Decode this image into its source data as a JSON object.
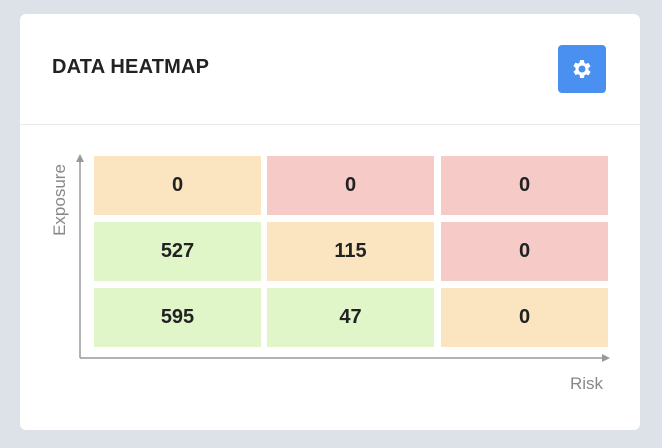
{
  "header": {
    "title": "DATA HEATMAP"
  },
  "heatmap": {
    "x_label": "Risk",
    "y_label": "Exposure",
    "rows": [
      [
        {
          "value": 0,
          "color": "#fbe5c0"
        },
        {
          "value": 0,
          "color": "#f6cbc7"
        },
        {
          "value": 0,
          "color": "#f6cbc7"
        }
      ],
      [
        {
          "value": 527,
          "color": "#e0f5c8"
        },
        {
          "value": 115,
          "color": "#fbe5c0"
        },
        {
          "value": 0,
          "color": "#f6cbc7"
        }
      ],
      [
        {
          "value": 595,
          "color": "#e0f5c8"
        },
        {
          "value": 47,
          "color": "#e0f5c8"
        },
        {
          "value": 0,
          "color": "#fbe5c0"
        }
      ]
    ]
  }
}
